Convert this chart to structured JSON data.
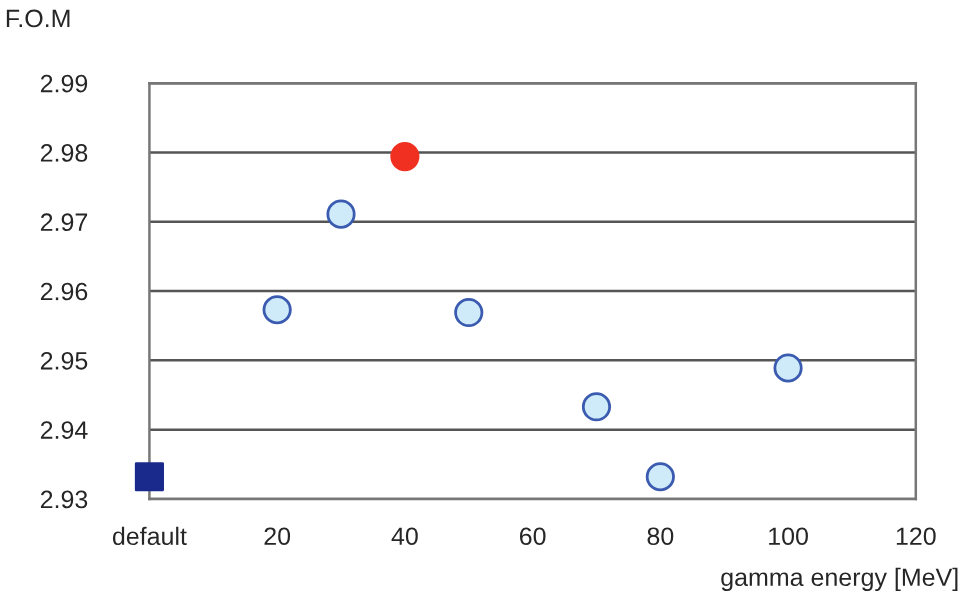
{
  "chart_data": {
    "type": "scatter",
    "xlabel": "gamma energy [MeV]",
    "ylabel": "F.O.M",
    "xlim": [
      0,
      120
    ],
    "xticks": [
      {
        "value": 0,
        "label": "default"
      },
      20,
      40,
      60,
      80,
      100,
      120
    ],
    "ylim": [
      2.93,
      2.99
    ],
    "yticks": [
      2.93,
      2.94,
      2.95,
      2.96,
      2.97,
      2.98,
      2.99
    ],
    "grid": "y",
    "series": [
      {
        "color": "#1a2a8c",
        "marker": "square",
        "x": [
          0
        ],
        "values": [
          2.9332
        ]
      },
      {
        "color": "#cfeaf9",
        "marker": "circle",
        "x": [
          20,
          30,
          50,
          70,
          80,
          100
        ],
        "values": [
          2.9573,
          2.9711,
          2.9569,
          2.9433,
          2.9332,
          2.9489
        ]
      },
      {
        "color": "#f03020",
        "marker": "circle",
        "x": [
          40
        ],
        "values": [
          2.9794
        ]
      }
    ]
  }
}
